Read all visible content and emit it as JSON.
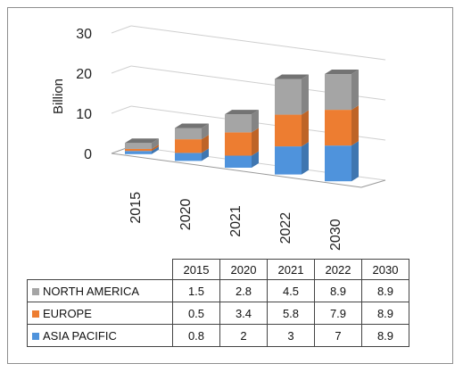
{
  "chart_data": {
    "type": "bar",
    "stacked": true,
    "three_d": true,
    "categories": [
      "2015",
      "2020",
      "2021",
      "2022",
      "2030"
    ],
    "series": [
      {
        "name": "ASIA PACIFIC",
        "color": "#4f93dc",
        "values": [
          0.8,
          2,
          3,
          7,
          8.9
        ]
      },
      {
        "name": "EUROPE",
        "color": "#ed7d31",
        "values": [
          0.5,
          3.4,
          5.8,
          7.9,
          8.9
        ]
      },
      {
        "name": "NORTH AMERICA",
        "color": "#a5a5a5",
        "values": [
          1.5,
          2.8,
          4.5,
          8.9,
          8.9
        ]
      }
    ],
    "ylabel": "Billion",
    "ylim": [
      0,
      30
    ],
    "yticks": [
      "0",
      "10",
      "20",
      "30"
    ],
    "grid": true,
    "legend": "data table below chart"
  },
  "table": {
    "columns": [
      "2015",
      "2020",
      "2021",
      "2022",
      "2030"
    ],
    "rows": [
      {
        "label": "NORTH AMERICA",
        "color": "#a5a5a5",
        "values": [
          "1.5",
          "2.8",
          "4.5",
          "8.9",
          "8.9"
        ]
      },
      {
        "label": "EUROPE",
        "color": "#ed7d31",
        "values": [
          "0.5",
          "3.4",
          "5.8",
          "7.9",
          "8.9"
        ]
      },
      {
        "label": "ASIA PACIFIC",
        "color": "#4f93dc",
        "values": [
          "0.8",
          "2",
          "3",
          "7",
          "8.9"
        ]
      }
    ]
  }
}
